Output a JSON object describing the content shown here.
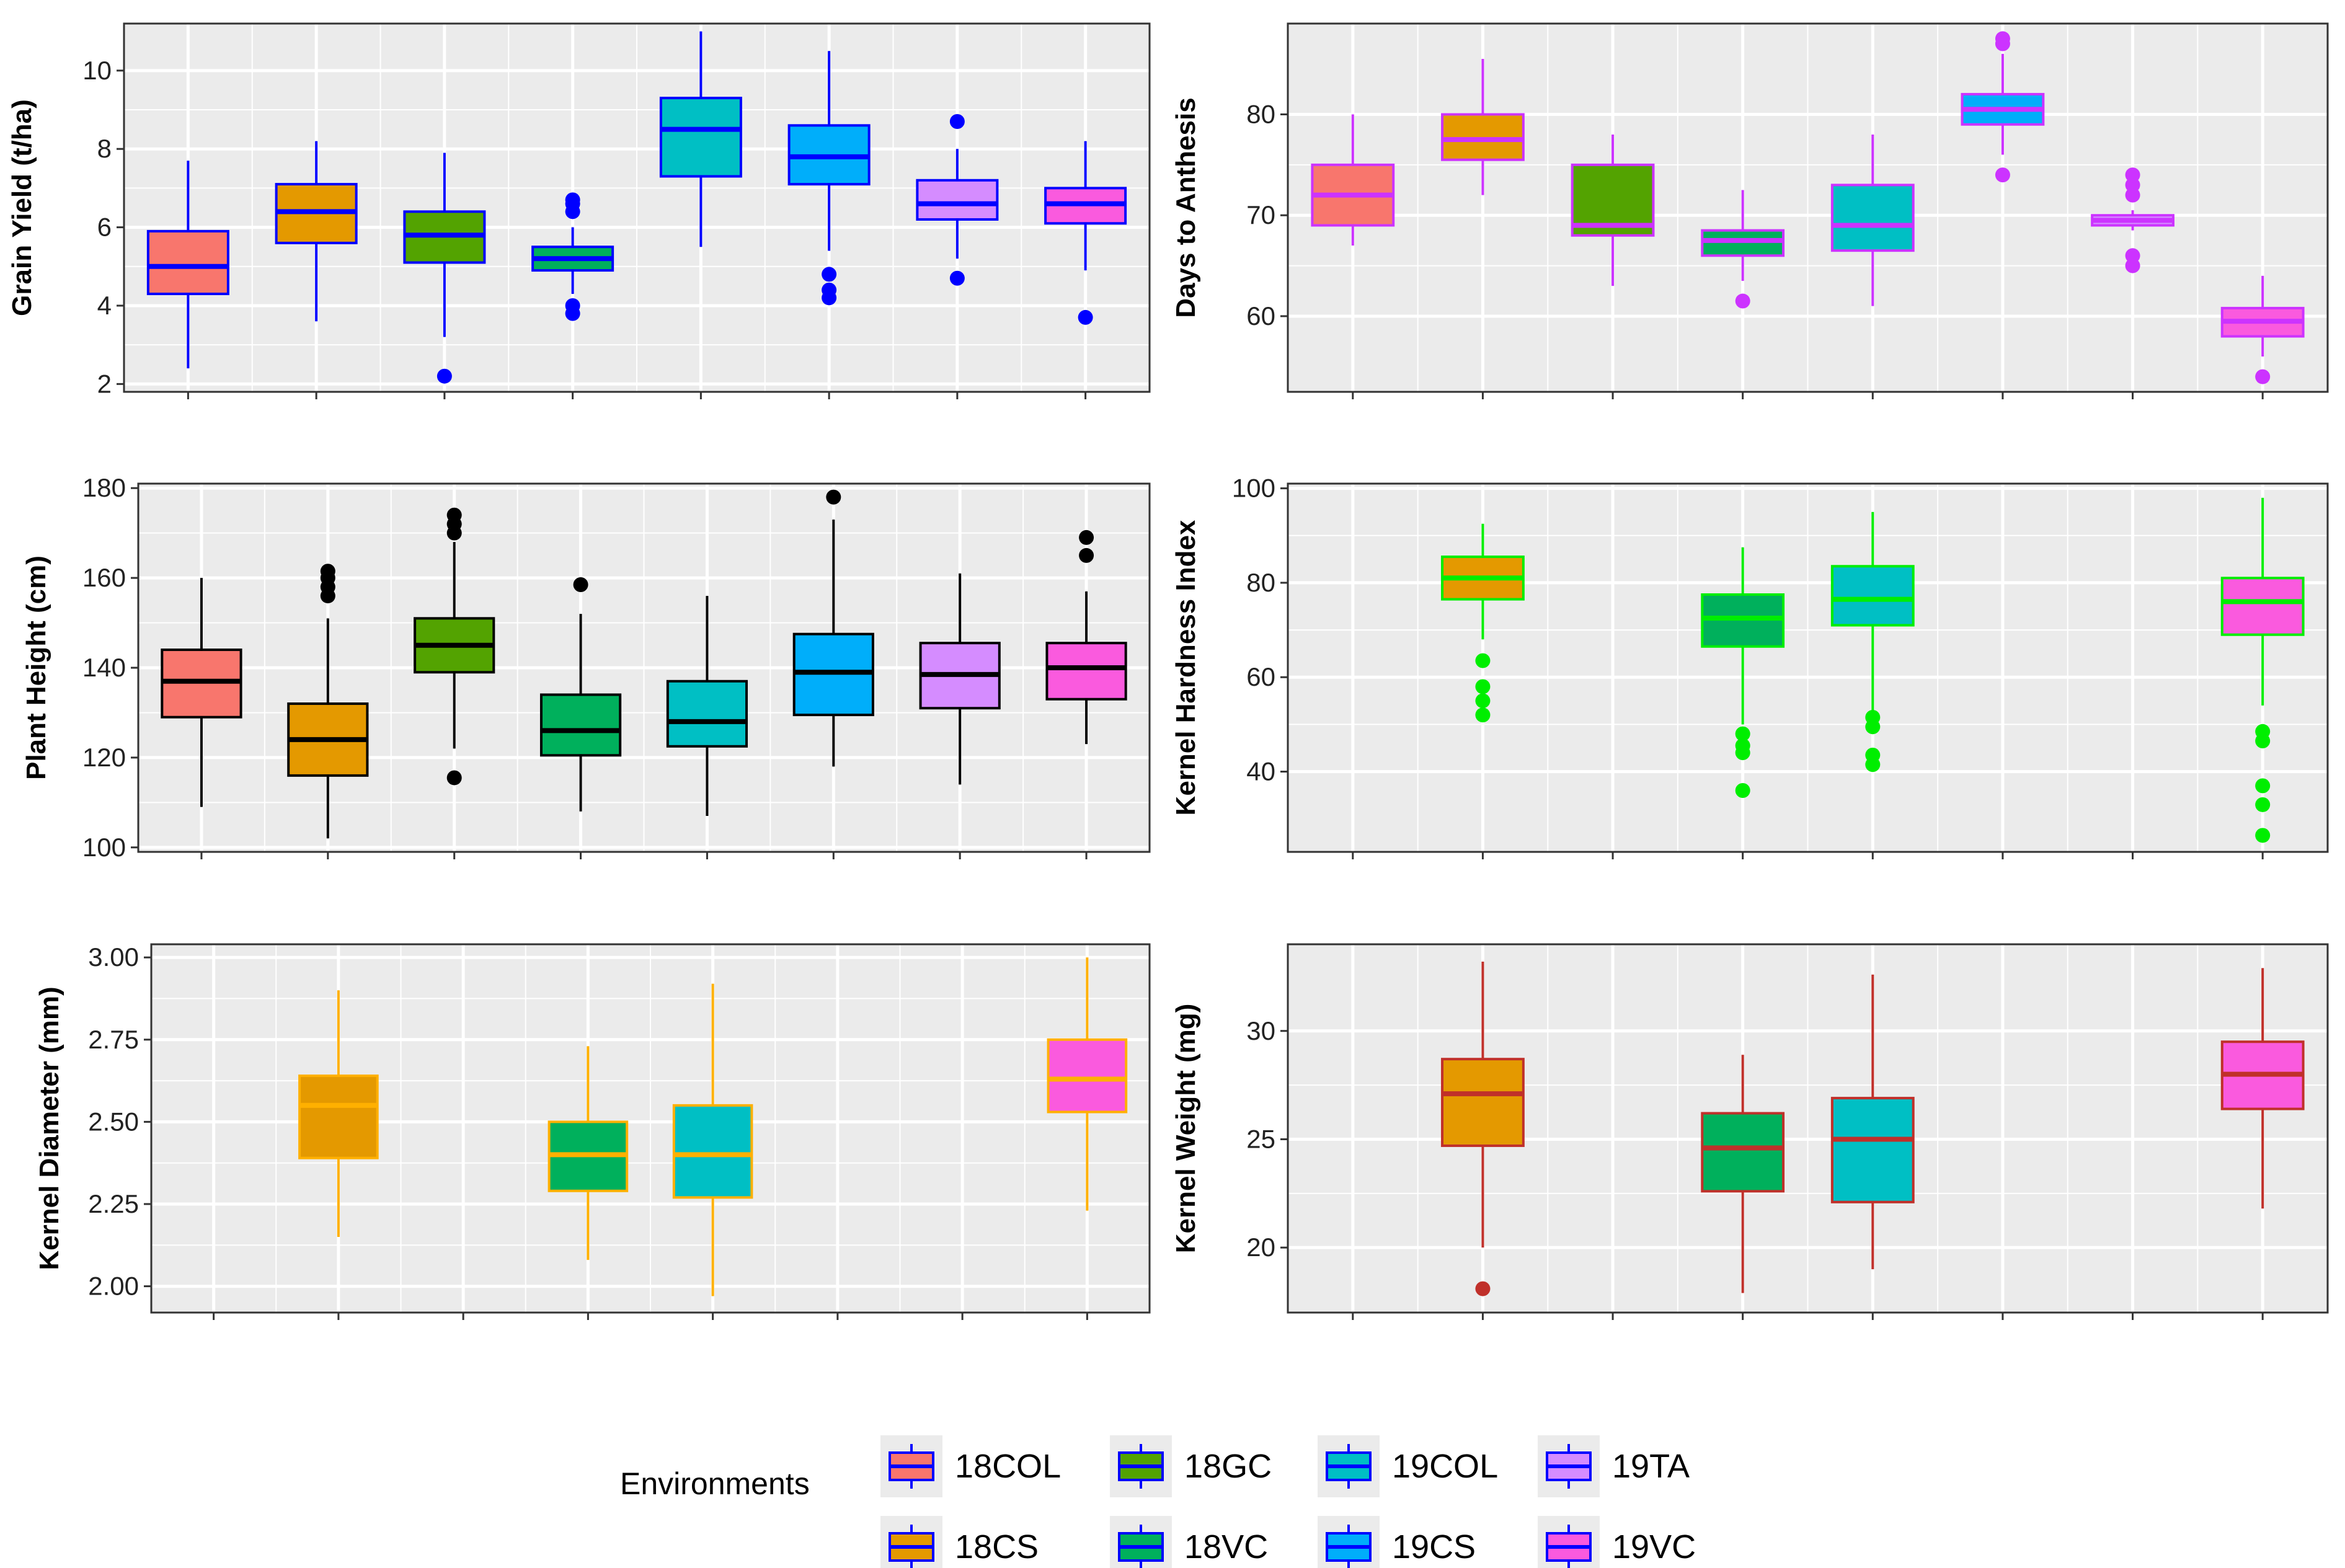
{
  "chart_data": [
    {
      "type": "box",
      "ylabel": "Grain Yield (t/ha)",
      "ylim": [
        1.8,
        11.2
      ],
      "yticks": [
        2,
        4,
        6,
        8,
        10
      ],
      "tick_labels": [
        "2",
        "4",
        "6",
        "8",
        "10"
      ],
      "line_color": "#0000ff",
      "categories": [
        "18COL",
        "18CS",
        "18GC",
        "18VC",
        "19COL",
        "19CS",
        "19TA",
        "19VC"
      ],
      "boxes": [
        {
          "env": "18COL",
          "min": 2.4,
          "q1": 4.3,
          "median": 5.0,
          "q3": 5.9,
          "max": 7.7,
          "outliers": []
        },
        {
          "env": "18CS",
          "min": 3.6,
          "q1": 5.6,
          "median": 6.4,
          "q3": 7.1,
          "max": 8.2,
          "outliers": []
        },
        {
          "env": "18GC",
          "min": 3.2,
          "q1": 5.1,
          "median": 5.8,
          "q3": 6.4,
          "max": 7.9,
          "outliers": [
            2.2
          ]
        },
        {
          "env": "18VC",
          "min": 4.3,
          "q1": 4.9,
          "median": 5.2,
          "q3": 5.5,
          "max": 6.0,
          "outliers": [
            3.8,
            4.0,
            6.4,
            6.6,
            6.7
          ]
        },
        {
          "env": "19COL",
          "min": 5.5,
          "q1": 7.3,
          "median": 8.5,
          "q3": 9.3,
          "max": 11.0,
          "outliers": []
        },
        {
          "env": "19CS",
          "min": 5.4,
          "q1": 7.1,
          "median": 7.8,
          "q3": 8.6,
          "max": 10.5,
          "outliers": [
            4.2,
            4.4,
            4.8
          ]
        },
        {
          "env": "19TA",
          "min": 5.2,
          "q1": 6.2,
          "median": 6.6,
          "q3": 7.2,
          "max": 8.0,
          "outliers": [
            4.7,
            8.7
          ]
        },
        {
          "env": "19VC",
          "min": 4.9,
          "q1": 6.1,
          "median": 6.6,
          "q3": 7.0,
          "max": 8.2,
          "outliers": [
            3.7
          ]
        }
      ]
    },
    {
      "type": "box",
      "ylabel": "Days to Anthesis",
      "ylim": [
        52.5,
        89
      ],
      "yticks": [
        60,
        70,
        80
      ],
      "tick_labels": [
        "60",
        "70",
        "80"
      ],
      "line_color": "#cc33ff",
      "categories": [
        "18COL",
        "18CS",
        "18GC",
        "18VC",
        "19COL",
        "19CS",
        "19TA",
        "19VC"
      ],
      "boxes": [
        {
          "env": "18COL",
          "min": 67,
          "q1": 69,
          "median": 72,
          "q3": 75,
          "max": 80,
          "outliers": []
        },
        {
          "env": "18CS",
          "min": 72,
          "q1": 75.5,
          "median": 77.5,
          "q3": 80,
          "max": 85.5,
          "outliers": []
        },
        {
          "env": "18GC",
          "min": 63,
          "q1": 68,
          "median": 69,
          "q3": 75,
          "max": 78,
          "outliers": []
        },
        {
          "env": "18VC",
          "min": 63.5,
          "q1": 66,
          "median": 67.5,
          "q3": 68.5,
          "max": 72.5,
          "outliers": [
            61.5
          ]
        },
        {
          "env": "19COL",
          "min": 61,
          "q1": 66.5,
          "median": 69,
          "q3": 73,
          "max": 78,
          "outliers": []
        },
        {
          "env": "19CS",
          "min": 76,
          "q1": 79,
          "median": 80.5,
          "q3": 82,
          "max": 86,
          "outliers": [
            74,
            87,
            87.5
          ]
        },
        {
          "env": "19TA",
          "min": 68.5,
          "q1": 69,
          "median": 69.5,
          "q3": 70,
          "max": 70.5,
          "outliers": [
            65,
            66,
            72,
            73,
            74
          ]
        },
        {
          "env": "19VC",
          "min": 56,
          "q1": 58,
          "median": 59.5,
          "q3": 60.8,
          "max": 64,
          "outliers": [
            54
          ]
        }
      ]
    },
    {
      "type": "box",
      "ylabel": "Plant Height (cm)",
      "ylim": [
        99,
        181
      ],
      "yticks": [
        100,
        120,
        140,
        160,
        180
      ],
      "tick_labels": [
        "100",
        "120",
        "140",
        "160",
        "180"
      ],
      "line_color": "#000000",
      "categories": [
        "18COL",
        "18CS",
        "18GC",
        "18VC",
        "19COL",
        "19CS",
        "19TA",
        "19VC"
      ],
      "boxes": [
        {
          "env": "18COL",
          "min": 109,
          "q1": 129,
          "median": 137,
          "q3": 144,
          "max": 160,
          "outliers": []
        },
        {
          "env": "18CS",
          "min": 102,
          "q1": 116,
          "median": 124,
          "q3": 132,
          "max": 151,
          "outliers": [
            156,
            158,
            160,
            161.5
          ]
        },
        {
          "env": "18GC",
          "min": 122,
          "q1": 139,
          "median": 145,
          "q3": 151,
          "max": 168,
          "outliers": [
            115.5,
            170,
            172,
            174
          ]
        },
        {
          "env": "18VC",
          "min": 108,
          "q1": 120.5,
          "median": 126,
          "q3": 134,
          "max": 152,
          "outliers": [
            158.5
          ]
        },
        {
          "env": "19COL",
          "min": 107,
          "q1": 122.5,
          "median": 128,
          "q3": 137,
          "max": 156,
          "outliers": []
        },
        {
          "env": "19CS",
          "min": 118,
          "q1": 129.5,
          "median": 139,
          "q3": 147.5,
          "max": 173,
          "outliers": [
            178
          ]
        },
        {
          "env": "19TA",
          "min": 114,
          "q1": 131,
          "median": 138.5,
          "q3": 145.5,
          "max": 161,
          "outliers": []
        },
        {
          "env": "19VC",
          "min": 123,
          "q1": 133,
          "median": 140,
          "q3": 145.5,
          "max": 157,
          "outliers": [
            165,
            169
          ]
        }
      ]
    },
    {
      "type": "box",
      "ylabel": "Kernel Hardness Index",
      "ylim": [
        23,
        101
      ],
      "yticks": [
        40,
        60,
        80,
        100
      ],
      "tick_labels": [
        "40",
        "60",
        "80",
        "100"
      ],
      "line_color": "#00ee00",
      "categories": [
        "18COL",
        "18CS",
        "18GC",
        "18VC",
        "19COL",
        "19CS",
        "19TA",
        "19VC"
      ],
      "boxes": [
        {
          "env": "18CS",
          "min": 68,
          "q1": 76.5,
          "median": 81,
          "q3": 85.5,
          "max": 92.5,
          "outliers": [
            52,
            55,
            58,
            63.5
          ]
        },
        {
          "env": "18VC",
          "min": 50,
          "q1": 66.5,
          "median": 72.5,
          "q3": 77.5,
          "max": 87.5,
          "outliers": [
            36,
            44,
            45.5,
            48
          ]
        },
        {
          "env": "19COL",
          "min": 53,
          "q1": 71,
          "median": 76.5,
          "q3": 83.5,
          "max": 95,
          "outliers": [
            41.5,
            43.5,
            49.5,
            51.5
          ]
        },
        {
          "env": "19VC",
          "min": 54,
          "q1": 69,
          "median": 76,
          "q3": 81,
          "max": 98,
          "outliers": [
            26.5,
            33,
            37,
            46.5,
            48.5
          ]
        }
      ]
    },
    {
      "type": "box",
      "ylabel": "Kernel Diameter (mm)",
      "ylim": [
        1.92,
        3.04
      ],
      "yticks": [
        2.0,
        2.25,
        2.5,
        2.75,
        3.0
      ],
      "tick_labels": [
        "2.00",
        "2.25",
        "2.50",
        "2.75",
        "3.00"
      ],
      "line_color": "#ffb000",
      "categories": [
        "18COL",
        "18CS",
        "18GC",
        "18VC",
        "19COL",
        "19CS",
        "19TA",
        "19VC"
      ],
      "boxes": [
        {
          "env": "18CS",
          "min": 2.15,
          "q1": 2.39,
          "median": 2.55,
          "q3": 2.64,
          "max": 2.9,
          "outliers": []
        },
        {
          "env": "18VC",
          "min": 2.08,
          "q1": 2.29,
          "median": 2.4,
          "q3": 2.5,
          "max": 2.73,
          "outliers": []
        },
        {
          "env": "19COL",
          "min": 1.97,
          "q1": 2.27,
          "median": 2.4,
          "q3": 2.55,
          "max": 2.92,
          "outliers": []
        },
        {
          "env": "19VC",
          "min": 2.23,
          "q1": 2.53,
          "median": 2.63,
          "q3": 2.75,
          "max": 3.0,
          "outliers": []
        }
      ]
    },
    {
      "type": "box",
      "ylabel": "Kernel Weight (mg)",
      "ylim": [
        17,
        34
      ],
      "yticks": [
        20,
        25,
        30
      ],
      "tick_labels": [
        "20",
        "25",
        "30"
      ],
      "line_color": "#c0302a",
      "categories": [
        "18COL",
        "18CS",
        "18GC",
        "18VC",
        "19COL",
        "19CS",
        "19TA",
        "19VC"
      ],
      "boxes": [
        {
          "env": "18CS",
          "min": 20,
          "q1": 24.7,
          "median": 27.1,
          "q3": 28.7,
          "max": 33.2,
          "outliers": [
            18.1
          ]
        },
        {
          "env": "18VC",
          "min": 17.9,
          "q1": 22.6,
          "median": 24.6,
          "q3": 26.2,
          "max": 28.9,
          "outliers": []
        },
        {
          "env": "19COL",
          "min": 19,
          "q1": 22.1,
          "median": 25,
          "q3": 26.9,
          "max": 32.6,
          "outliers": []
        },
        {
          "env": "19VC",
          "min": 21.8,
          "q1": 26.4,
          "median": 28,
          "q3": 29.5,
          "max": 32.9,
          "outliers": []
        }
      ]
    }
  ],
  "legend": {
    "title": "Environments",
    "items": [
      {
        "label": "18COL",
        "color": "#f8766d"
      },
      {
        "label": "18GC",
        "color": "#53a301"
      },
      {
        "label": "19COL",
        "color": "#00bfc4"
      },
      {
        "label": "19TA",
        "color": "#d58cff"
      },
      {
        "label": "18CS",
        "color": "#e49900"
      },
      {
        "label": "18VC",
        "color": "#00b05c"
      },
      {
        "label": "19CS",
        "color": "#00aefa"
      },
      {
        "label": "19VC",
        "color": "#fa5ade"
      }
    ],
    "key_line_color": "#0000ff"
  },
  "env_colors": {
    "18COL": "#f8766d",
    "18CS": "#e49900",
    "18GC": "#53a301",
    "18VC": "#00b05c",
    "19COL": "#00bfc4",
    "19CS": "#00aefa",
    "19TA": "#d58cff",
    "19VC": "#fa5ade"
  },
  "panel_bg": "#ebebeb",
  "grid_color": "#ffffff"
}
